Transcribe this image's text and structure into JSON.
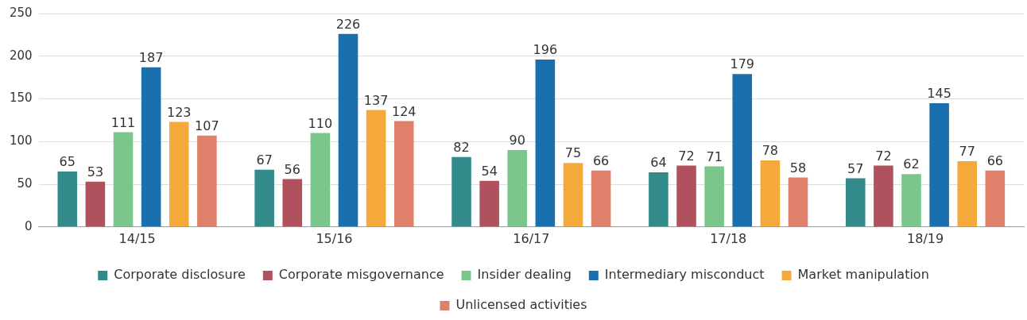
{
  "chart_data": {
    "type": "bar",
    "categories": [
      "14/15",
      "15/16",
      "16/17",
      "17/18",
      "18/19"
    ],
    "series": [
      {
        "name": "Corporate disclosure",
        "color": "#338a8a",
        "values": [
          65,
          67,
          82,
          64,
          57
        ]
      },
      {
        "name": "Corporate misgovernance",
        "color": "#b0525d",
        "values": [
          53,
          56,
          54,
          72,
          72
        ]
      },
      {
        "name": "Insider dealing",
        "color": "#7bc68a",
        "values": [
          111,
          110,
          90,
          71,
          62
        ]
      },
      {
        "name": "Intermediary misconduct",
        "color": "#1a6fae",
        "values": [
          187,
          226,
          196,
          179,
          145
        ]
      },
      {
        "name": "Market manipulation",
        "color": "#f5a93a",
        "values": [
          123,
          137,
          75,
          78,
          77
        ]
      },
      {
        "name": "Unlicensed activities",
        "color": "#e0806a",
        "values": [
          107,
          124,
          66,
          58,
          66
        ]
      }
    ],
    "ylim": [
      0,
      250
    ],
    "yticks": [
      0,
      50,
      100,
      150,
      200,
      250
    ],
    "grid": "y",
    "legend": "bottom",
    "data_labels": true
  }
}
